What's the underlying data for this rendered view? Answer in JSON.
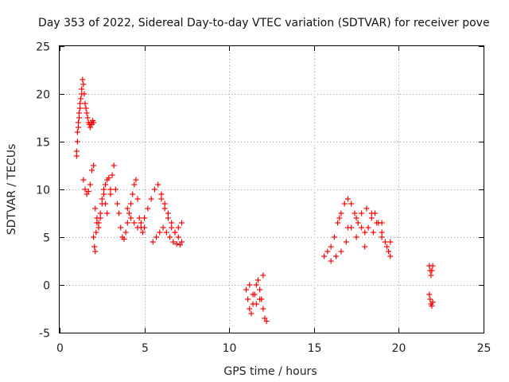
{
  "chart_data": {
    "type": "scatter",
    "title": "Day 353 of 2022, Sidereal Day-to-day VTEC variation (SDTVAR) for receiver pove",
    "xlabel": "GPS time / hours",
    "ylabel": "SDTVAR / TECUs",
    "xlim": [
      0,
      25
    ],
    "ylim": [
      -5,
      25
    ],
    "x_ticks": [
      "0",
      "5",
      "10",
      "15",
      "20",
      "25"
    ],
    "y_ticks": [
      "-5",
      "0",
      "5",
      "10",
      "15",
      "20",
      "25"
    ],
    "grid": true,
    "marker": "+",
    "color": "#ff0000",
    "series": [
      {
        "name": "SDTVAR",
        "x": [
          1.0,
          1.05,
          1.1,
          1.15,
          1.2,
          1.25,
          1.3,
          1.35,
          1.4,
          1.45,
          1.5,
          1.55,
          1.6,
          1.65,
          1.7,
          1.75,
          1.8,
          1.85,
          1.9,
          1.95,
          2.0,
          1.0,
          1.05,
          1.1,
          1.15,
          1.2,
          1.3,
          1.4,
          1.5,
          1.6,
          1.7,
          1.8,
          1.9,
          2.0,
          2.1,
          2.2,
          2.3,
          2.4,
          2.5,
          2.6,
          2.7,
          2.8,
          2.9,
          3.0,
          2.0,
          2.05,
          2.1,
          2.15,
          2.2,
          2.3,
          2.4,
          2.5,
          2.6,
          2.7,
          2.8,
          3.0,
          3.1,
          3.2,
          3.3,
          3.4,
          3.5,
          3.6,
          3.7,
          3.8,
          3.9,
          4.0,
          4.1,
          4.2,
          4.3,
          4.4,
          4.5,
          4.6,
          4.7,
          4.8,
          4.9,
          5.0,
          4.0,
          4.2,
          4.4,
          4.6,
          4.8,
          5.0,
          5.2,
          5.4,
          5.6,
          5.8,
          6.0,
          6.2,
          6.4,
          6.6,
          6.8,
          7.0,
          7.2,
          5.5,
          5.7,
          5.9,
          6.1,
          6.3,
          6.5,
          6.7,
          6.9,
          7.1,
          6.0,
          6.2,
          6.4,
          6.6,
          6.8,
          7.0,
          7.2,
          11.0,
          11.1,
          11.2,
          11.3,
          11.4,
          11.5,
          11.6,
          11.7,
          11.8,
          11.9,
          12.0,
          12.1,
          12.2,
          11.2,
          11.4,
          11.6,
          11.8,
          12.0,
          15.6,
          15.8,
          16.0,
          16.2,
          16.4,
          16.6,
          16.8,
          17.0,
          17.2,
          17.4,
          17.6,
          17.8,
          18.0,
          18.2,
          18.4,
          18.6,
          18.8,
          19.0,
          19.2,
          19.4,
          16.0,
          16.3,
          16.6,
          16.9,
          17.2,
          17.5,
          17.8,
          18.1,
          18.4,
          18.7,
          19.0,
          19.3,
          19.5,
          16.5,
          17.0,
          17.5,
          18.0,
          18.5,
          19.0,
          19.5,
          21.8,
          21.85,
          21.9,
          21.95,
          22.0,
          21.8,
          21.85,
          21.9,
          21.95,
          22.0
        ],
        "y": [
          13.5,
          15.0,
          16.5,
          17.5,
          18.5,
          19.5,
          20.5,
          21.5,
          21.0,
          20.0,
          19.0,
          18.5,
          18.0,
          17.5,
          17.0,
          16.8,
          16.5,
          17.0,
          16.8,
          17.2,
          17.0,
          14.0,
          16.0,
          17.0,
          18.0,
          19.0,
          20.0,
          11.0,
          10.0,
          9.5,
          9.8,
          10.5,
          12.0,
          12.5,
          8.0,
          7.0,
          6.5,
          7.5,
          8.5,
          9.5,
          10.5,
          11.0,
          11.2,
          10.0,
          5.0,
          4.0,
          3.5,
          5.5,
          6.5,
          6.0,
          7.0,
          9.0,
          10.0,
          8.5,
          7.5,
          9.5,
          11.5,
          12.5,
          10.0,
          8.5,
          7.5,
          6.0,
          5.0,
          4.8,
          5.5,
          6.5,
          7.5,
          8.5,
          9.5,
          10.5,
          11.0,
          9.0,
          7.0,
          6.0,
          5.5,
          6.0,
          8.0,
          7.0,
          6.5,
          6.0,
          6.5,
          7.0,
          8.0,
          9.0,
          10.0,
          10.5,
          9.5,
          8.5,
          7.5,
          6.5,
          5.5,
          6.0,
          6.5,
          4.5,
          5.0,
          5.5,
          6.0,
          5.5,
          5.0,
          4.5,
          4.3,
          4.2,
          9.0,
          8.0,
          7.0,
          6.0,
          5.5,
          5.0,
          4.5,
          -0.5,
          -1.5,
          -2.5,
          -3.0,
          -2.0,
          -1.0,
          0.0,
          0.5,
          -0.5,
          -1.5,
          -2.5,
          -3.5,
          -3.8,
          0.0,
          -1.0,
          -2.0,
          -1.5,
          1.0,
          3.0,
          3.5,
          4.0,
          5.0,
          6.5,
          7.5,
          8.5,
          9.0,
          8.5,
          7.5,
          6.5,
          6.0,
          5.5,
          6.0,
          7.0,
          7.5,
          6.5,
          5.5,
          4.5,
          3.5,
          2.5,
          3.0,
          3.5,
          4.5,
          6.0,
          7.0,
          7.5,
          8.0,
          7.5,
          6.5,
          5.0,
          4.0,
          3.0,
          7.0,
          6.0,
          5.0,
          4.0,
          5.5,
          6.5,
          4.5,
          2.0,
          1.5,
          1.0,
          1.5,
          2.0,
          -1.0,
          -1.5,
          -2.0,
          -2.2,
          -1.8
        ]
      }
    ]
  }
}
